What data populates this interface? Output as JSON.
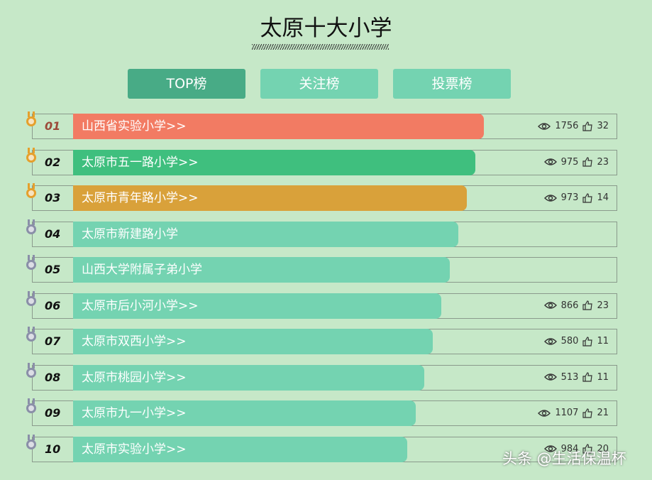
{
  "header": {
    "title": "太原十大小学"
  },
  "tabs": [
    "TOP榜",
    "关注榜",
    "投票榜"
  ],
  "rows": [
    {
      "rank": "01",
      "name": "山西省实验小学>>",
      "views": 1756,
      "likes": 32
    },
    {
      "rank": "02",
      "name": "太原市五一路小学>>",
      "views": 975,
      "likes": 23
    },
    {
      "rank": "03",
      "name": "太原市青年路小学>>",
      "views": 973,
      "likes": 14
    },
    {
      "rank": "04",
      "name": "太原市新建路小学"
    },
    {
      "rank": "05",
      "name": "山西大学附属子弟小学"
    },
    {
      "rank": "06",
      "name": "太原市后小河小学>>",
      "views": 866,
      "likes": 23
    },
    {
      "rank": "07",
      "name": "太原市双西小学>>",
      "views": 580,
      "likes": 11
    },
    {
      "rank": "08",
      "name": "太原市桃园小学>>",
      "views": 513,
      "likes": 11
    },
    {
      "rank": "09",
      "name": "太原市九一小学>>",
      "views": 1107,
      "likes": 21
    },
    {
      "rank": "10",
      "name": "太原市实验小学>>",
      "views": 984,
      "likes": 20
    }
  ],
  "watermark": "头条 @生活保温杯"
}
